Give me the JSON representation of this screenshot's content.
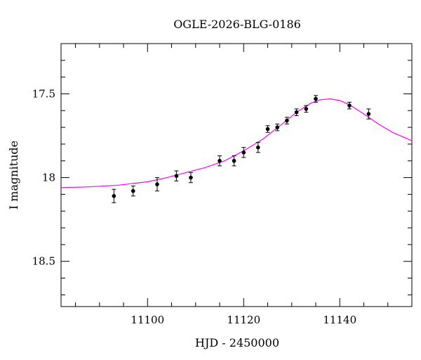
{
  "chart_data": {
    "type": "scatter",
    "title": "OGLE-2026-BLG-0186",
    "xlabel": "HJD - 2450000",
    "ylabel": "I magnitude",
    "xlim": [
      11082,
      11155
    ],
    "ylim": [
      18.77,
      17.2
    ],
    "y_inverted": true,
    "x_ticks": [
      11100,
      11120,
      11140
    ],
    "y_ticks": [
      17.5,
      18,
      18.5
    ],
    "grid": false,
    "model_color": "#ff00ff",
    "point_color": "#000000",
    "series": [
      {
        "type": "errorbar",
        "x": [
          11093,
          11097,
          11102,
          11106,
          11109,
          11115,
          11118,
          11120,
          11123,
          11125,
          11127,
          11129,
          11131,
          11133,
          11135,
          11142,
          11146
        ],
        "y": [
          18.11,
          18.08,
          18.04,
          17.99,
          18.0,
          17.9,
          17.9,
          17.85,
          17.82,
          17.71,
          17.7,
          17.66,
          17.61,
          17.59,
          17.53,
          17.57,
          17.62
        ],
        "yerr": [
          0.04,
          0.03,
          0.04,
          0.03,
          0.03,
          0.03,
          0.03,
          0.03,
          0.03,
          0.02,
          0.02,
          0.02,
          0.02,
          0.02,
          0.02,
          0.02,
          0.03
        ]
      },
      {
        "type": "model",
        "x": [
          11082,
          11088,
          11094,
          11100,
          11104,
          11108,
          11112,
          11116,
          11120,
          11124,
          11128,
          11131,
          11134,
          11136,
          11138,
          11140,
          11142,
          11145,
          11148,
          11151,
          11155
        ],
        "y": [
          18.06,
          18.055,
          18.045,
          18.025,
          18.0,
          17.97,
          17.94,
          17.9,
          17.84,
          17.77,
          17.68,
          17.61,
          17.555,
          17.535,
          17.53,
          17.54,
          17.565,
          17.62,
          17.68,
          17.73,
          17.78
        ]
      }
    ]
  }
}
